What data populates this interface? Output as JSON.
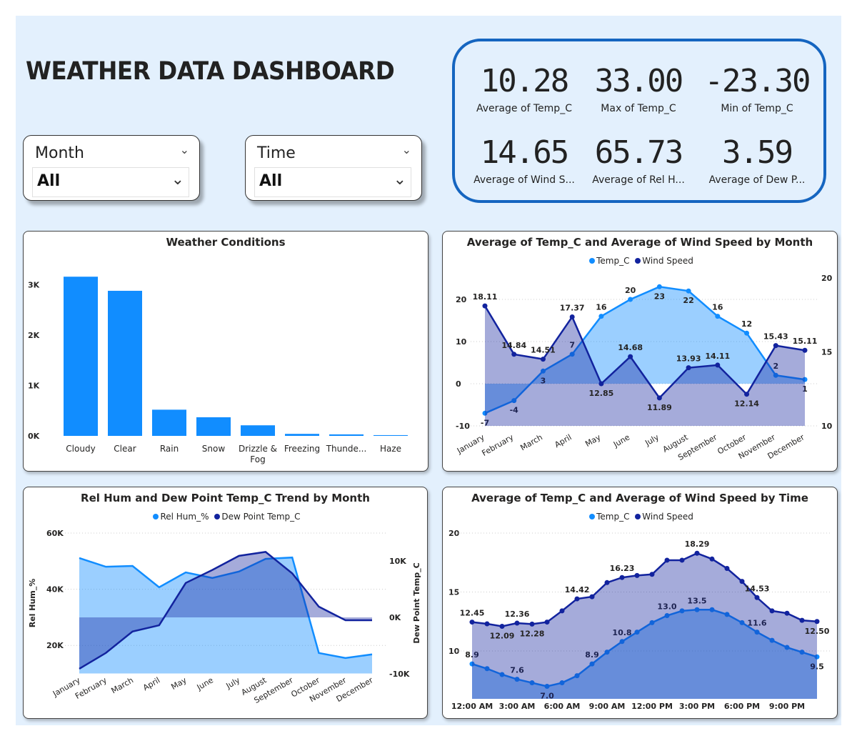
{
  "header": {
    "title": "WEATHER DATA DASHBOARD"
  },
  "slicers": [
    {
      "label": "Month",
      "value": "All"
    },
    {
      "label": "Time",
      "value": "All"
    }
  ],
  "kpis": [
    {
      "value": "10.28",
      "label": "Average of Temp_C"
    },
    {
      "value": "33.00",
      "label": "Max of Temp_C"
    },
    {
      "value": "-23.30",
      "label": "Min of Temp_C"
    },
    {
      "value": "14.65",
      "label": "Average of Wind S..."
    },
    {
      "value": "65.73",
      "label": "Average of Rel H..."
    },
    {
      "value": "3.59",
      "label": "Average of Dew P..."
    }
  ],
  "colors": {
    "light": "#118DFF",
    "dark": "#12239E",
    "panel": "#E3F0FD",
    "kpi_border": "#1565C0"
  },
  "chart_data": [
    {
      "type": "bar",
      "title": "Weather Conditions",
      "categories": [
        "Cloudy",
        "Clear",
        "Rain",
        "Snow",
        "Drizzle & Fog",
        "Freezing",
        "Thunde...",
        "Haze"
      ],
      "values": [
        3.16,
        2.88,
        0.52,
        0.37,
        0.21,
        0.04,
        0.03,
        0.015
      ],
      "yticks": [
        "0K",
        "1K",
        "2K",
        "3K"
      ],
      "ylim": [
        0,
        3.2
      ],
      "color": "#118DFF"
    },
    {
      "type": "line",
      "title": "Average of Temp_C and Average of Wind Speed by Month",
      "categories": [
        "January",
        "February",
        "March",
        "April",
        "May",
        "June",
        "July",
        "August",
        "September",
        "October",
        "November",
        "December"
      ],
      "series": [
        {
          "name": "Temp_C",
          "axis": "left",
          "color": "#118DFF",
          "values": [
            -7,
            -4,
            3,
            7,
            16,
            20,
            23,
            22,
            16,
            12,
            2,
            1
          ],
          "labels": [
            "-7",
            "-4",
            "3",
            "7",
            "16",
            "20",
            "23",
            "22",
            "16",
            "12",
            "2",
            "1"
          ]
        },
        {
          "name": "Wind Speed",
          "axis": "right",
          "color": "#12239E",
          "values": [
            18.11,
            14.84,
            14.51,
            17.37,
            12.85,
            14.68,
            11.89,
            13.93,
            14.11,
            12.14,
            15.43,
            15.11
          ],
          "labels": [
            "18.11",
            "14.84",
            "14.51",
            "17.37",
            "12.85",
            "14.68",
            "11.89",
            "13.93",
            "14.11",
            "12.14",
            "15.43",
            "15.11"
          ]
        }
      ],
      "yticks_left": [
        "-10",
        "0",
        "10",
        "20"
      ],
      "yticks_right": [
        "10",
        "15",
        "20"
      ]
    },
    {
      "type": "area",
      "title": "Rel Hum and Dew Point Temp_C Trend by Month",
      "categories": [
        "January",
        "February",
        "March",
        "April",
        "May",
        "June",
        "July",
        "August",
        "September",
        "October",
        "November",
        "December"
      ],
      "series": [
        {
          "name": "Rel Hum_%",
          "axis": "left",
          "color": "#118DFF",
          "values": [
            51.1,
            48.0,
            48.3,
            40.7,
            46.0,
            44.0,
            46.3,
            50.8,
            51.3,
            17.3,
            15.5,
            16.8
          ]
        },
        {
          "name": "Dew Point Temp_C",
          "axis": "right",
          "color": "#12239E",
          "values": [
            -9.1,
            -6.3,
            -2.5,
            -1.4,
            6.1,
            8.4,
            10.9,
            11.6,
            7.8,
            1.9,
            -0.5,
            -0.5
          ]
        }
      ],
      "ylabel_left": "Rel Hum_%",
      "ylabel_right": "Dew Point Temp_C",
      "yticks_left": [
        "20K",
        "40K",
        "60K"
      ],
      "yticks_right": [
        "-10K",
        "0K",
        "10K"
      ]
    },
    {
      "type": "area",
      "title": "Average of Temp_C and Average of Wind Speed by Time",
      "categories": [
        "12:00 AM",
        "1:00 AM",
        "2:00 AM",
        "3:00 AM",
        "4:00 AM",
        "5:00 AM",
        "6:00 AM",
        "7:00 AM",
        "8:00 AM",
        "9:00 AM",
        "10:00 AM",
        "11:00 AM",
        "12:00 PM",
        "1:00 PM",
        "2:00 PM",
        "3:00 PM",
        "4:00 PM",
        "5:00 PM",
        "6:00 PM",
        "7:00 PM",
        "8:00 PM",
        "9:00 PM",
        "10:00 PM",
        "11:00 PM"
      ],
      "xticks": [
        "12:00 AM",
        "3:00 AM",
        "6:00 AM",
        "9:00 AM",
        "12:00 PM",
        "3:00 PM",
        "6:00 PM",
        "9:00 PM"
      ],
      "series": [
        {
          "name": "Temp_C",
          "color": "#118DFF",
          "values": [
            8.9,
            8.5,
            8.0,
            7.6,
            7.3,
            7.0,
            7.3,
            7.9,
            8.9,
            9.9,
            10.8,
            11.6,
            12.4,
            13.0,
            13.4,
            13.5,
            13.5,
            13.1,
            12.4,
            11.6,
            10.9,
            10.3,
            9.9,
            9.5
          ],
          "labels": {
            "0": "8.9",
            "3": "7.6",
            "5": "7.0",
            "8": "8.9",
            "10": "10.8",
            "13": "13.0",
            "15": "13.5",
            "19": "11.6",
            "23": "9.5"
          }
        },
        {
          "name": "Wind Speed",
          "color": "#12239E",
          "values": [
            12.45,
            12.3,
            12.09,
            12.36,
            12.28,
            12.45,
            13.4,
            14.42,
            14.6,
            15.8,
            16.23,
            16.4,
            16.5,
            17.7,
            17.7,
            18.29,
            17.8,
            17.0,
            15.9,
            14.53,
            13.4,
            13.2,
            12.6,
            12.5
          ],
          "labels": {
            "0": "12.45",
            "2": "12.09",
            "3": "12.36",
            "4": "12.28",
            "7": "14.42",
            "10": "16.23",
            "15": "18.29",
            "19": "14.53",
            "23": "12.50"
          }
        }
      ],
      "yticks": [
        "10",
        "15",
        "20"
      ]
    }
  ]
}
